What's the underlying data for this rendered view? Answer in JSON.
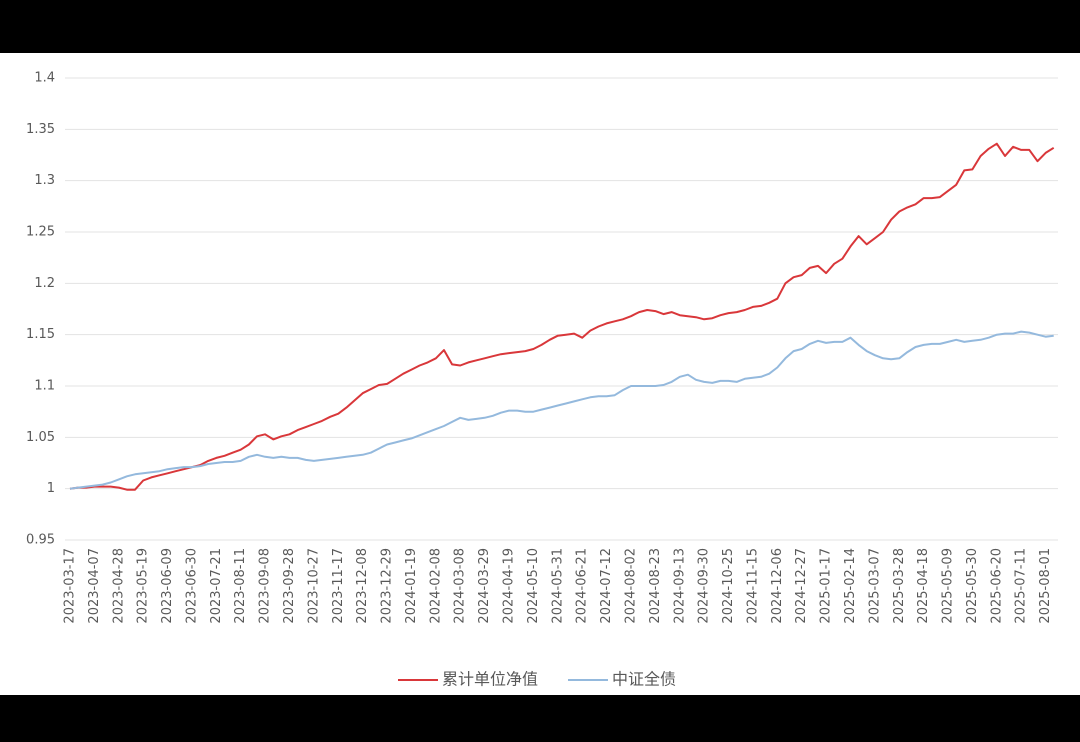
{
  "chart_data": {
    "type": "line",
    "categories": [
      "2023-03-17",
      null,
      null,
      "2023-04-07",
      null,
      null,
      "2023-04-28",
      null,
      null,
      "2023-05-19",
      null,
      null,
      "2023-06-09",
      null,
      null,
      "2023-06-30",
      null,
      null,
      "2023-07-21",
      null,
      null,
      "2023-08-11",
      null,
      null,
      "2023-09-08",
      null,
      null,
      "2023-09-28",
      null,
      null,
      "2023-10-27",
      null,
      null,
      "2023-11-17",
      null,
      null,
      "2023-12-08",
      null,
      null,
      "2023-12-29",
      null,
      null,
      "2024-01-19",
      null,
      null,
      "2024-02-08",
      null,
      null,
      "2024-03-08",
      null,
      null,
      "2024-03-29",
      null,
      null,
      "2024-04-19",
      null,
      null,
      "2024-05-10",
      null,
      null,
      "2024-05-31",
      null,
      null,
      "2024-06-21",
      null,
      null,
      "2024-07-12",
      null,
      null,
      "2024-08-02",
      null,
      null,
      "2024-08-23",
      null,
      null,
      "2024-09-13",
      null,
      null,
      "2024-09-30",
      null,
      null,
      "2024-10-25",
      null,
      null,
      "2024-11-15",
      null,
      null,
      "2024-12-06",
      null,
      null,
      "2024-12-27",
      null,
      null,
      "2025-01-17",
      null,
      null,
      "2025-02-14",
      null,
      null,
      "2025-03-07",
      null,
      null,
      "2025-03-28",
      null,
      null,
      "2025-04-18",
      null,
      null,
      "2025-05-09",
      null,
      null,
      "2025-05-30",
      null,
      null,
      "2025-06-20",
      null,
      null,
      "2025-07-11",
      null,
      null,
      "2025-08-01",
      null
    ],
    "series": [
      {
        "name": "累计单位净值",
        "color": "#d9373a",
        "values": [
          1.0,
          1.001,
          1.001,
          1.002,
          1.002,
          1.002,
          1.001,
          0.999,
          0.999,
          1.008,
          1.011,
          1.013,
          1.015,
          1.017,
          1.019,
          1.021,
          1.023,
          1.027,
          1.03,
          1.032,
          1.035,
          1.038,
          1.043,
          1.051,
          1.053,
          1.048,
          1.051,
          1.053,
          1.057,
          1.06,
          1.063,
          1.066,
          1.07,
          1.073,
          1.079,
          1.086,
          1.093,
          1.097,
          1.101,
          1.102,
          1.107,
          1.112,
          1.116,
          1.12,
          1.123,
          1.127,
          1.135,
          1.121,
          1.12,
          1.123,
          1.125,
          1.127,
          1.129,
          1.131,
          1.132,
          1.133,
          1.134,
          1.136,
          1.14,
          1.145,
          1.149,
          1.15,
          1.151,
          1.147,
          1.154,
          1.158,
          1.161,
          1.163,
          1.165,
          1.168,
          1.172,
          1.174,
          1.173,
          1.17,
          1.172,
          1.169,
          1.168,
          1.167,
          1.165,
          1.166,
          1.169,
          1.171,
          1.172,
          1.174,
          1.177,
          1.178,
          1.181,
          1.185,
          1.2,
          1.206,
          1.208,
          1.215,
          1.217,
          1.21,
          1.219,
          1.224,
          1.236,
          1.246,
          1.238,
          1.244,
          1.25,
          1.262,
          1.27,
          1.274,
          1.277,
          1.283,
          1.283,
          1.284,
          1.29,
          1.296,
          1.31,
          1.311,
          1.324,
          1.331,
          1.336,
          1.324,
          1.333,
          1.33,
          1.33,
          1.319,
          1.327,
          1.332
        ]
      },
      {
        "name": "中证全债",
        "color": "#94b9dd",
        "values": [
          1.0,
          1.001,
          1.002,
          1.003,
          1.004,
          1.006,
          1.009,
          1.012,
          1.014,
          1.015,
          1.016,
          1.017,
          1.019,
          1.02,
          1.021,
          1.021,
          1.022,
          1.024,
          1.025,
          1.026,
          1.026,
          1.027,
          1.031,
          1.033,
          1.031,
          1.03,
          1.031,
          1.03,
          1.03,
          1.028,
          1.027,
          1.028,
          1.029,
          1.03,
          1.031,
          1.032,
          1.033,
          1.035,
          1.039,
          1.043,
          1.045,
          1.047,
          1.049,
          1.052,
          1.055,
          1.058,
          1.061,
          1.065,
          1.069,
          1.067,
          1.068,
          1.069,
          1.071,
          1.074,
          1.076,
          1.076,
          1.075,
          1.075,
          1.077,
          1.079,
          1.081,
          1.083,
          1.085,
          1.087,
          1.089,
          1.09,
          1.09,
          1.091,
          1.096,
          1.1,
          1.1,
          1.1,
          1.1,
          1.101,
          1.104,
          1.109,
          1.111,
          1.106,
          1.104,
          1.103,
          1.105,
          1.105,
          1.104,
          1.107,
          1.108,
          1.109,
          1.112,
          1.118,
          1.127,
          1.134,
          1.136,
          1.141,
          1.144,
          1.142,
          1.143,
          1.143,
          1.147,
          1.14,
          1.134,
          1.13,
          1.127,
          1.126,
          1.127,
          1.133,
          1.138,
          1.14,
          1.141,
          1.141,
          1.143,
          1.145,
          1.143,
          1.144,
          1.145,
          1.147,
          1.15,
          1.151,
          1.151,
          1.153,
          1.152,
          1.15,
          1.148,
          1.149
        ]
      }
    ],
    "ylim": [
      0.95,
      1.4
    ],
    "yticks": [
      0.95,
      1,
      1.05,
      1.1,
      1.15,
      1.2,
      1.25,
      1.3,
      1.35,
      1.4
    ],
    "grid": true,
    "legend": "bottom"
  }
}
